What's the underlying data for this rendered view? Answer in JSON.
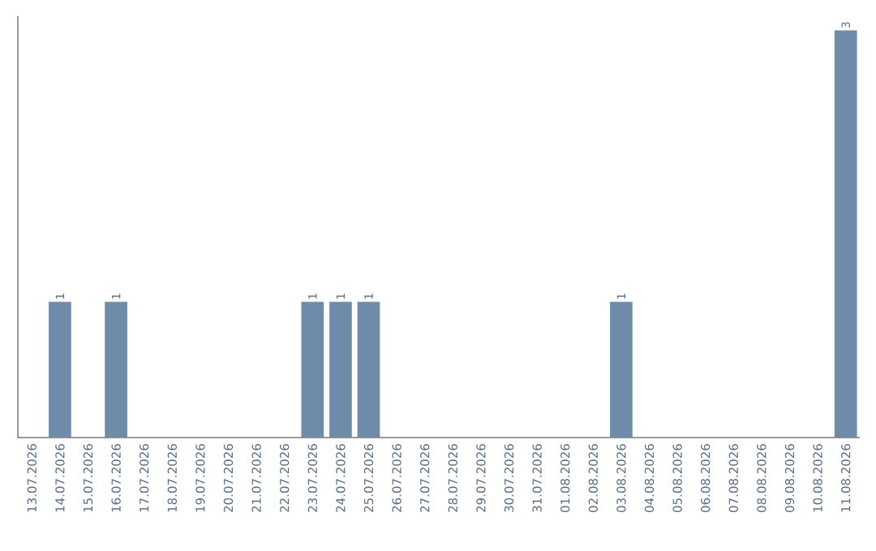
{
  "chart_data": {
    "type": "bar",
    "categories": [
      "13.07.2026",
      "14.07.2026",
      "15.07.2026",
      "16.07.2026",
      "17.07.2026",
      "18.07.2026",
      "19.07.2026",
      "20.07.2026",
      "21.07.2026",
      "22.07.2026",
      "23.07.2026",
      "24.07.2026",
      "25.07.2026",
      "26.07.2026",
      "27.07.2026",
      "28.07.2026",
      "29.07.2026",
      "30.07.2026",
      "31.07.2026",
      "01.08.2026",
      "02.08.2026",
      "03.08.2026",
      "04.08.2026",
      "05.08.2026",
      "06.08.2026",
      "07.08.2026",
      "08.08.2026",
      "09.08.2026",
      "10.08.2026",
      "11.08.2026"
    ],
    "values": [
      0,
      1,
      0,
      1,
      0,
      0,
      0,
      0,
      0,
      0,
      1,
      1,
      1,
      0,
      0,
      0,
      0,
      0,
      0,
      0,
      0,
      1,
      0,
      0,
      0,
      0,
      0,
      0,
      0,
      3
    ],
    "value_labels": [
      null,
      "1",
      null,
      "1",
      null,
      null,
      null,
      null,
      null,
      null,
      "1",
      "1",
      "1",
      null,
      null,
      null,
      null,
      null,
      null,
      null,
      null,
      "1",
      null,
      null,
      null,
      null,
      null,
      null,
      null,
      "3"
    ],
    "color": "#6e8caa"
  }
}
